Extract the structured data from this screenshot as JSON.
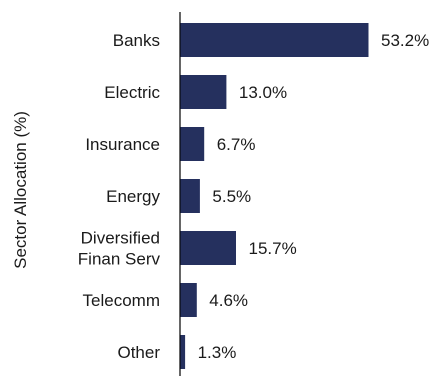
{
  "chart_data": {
    "type": "bar",
    "orientation": "horizontal",
    "ylabel": "Sector Allocation (%)",
    "xlabel": "",
    "title": "",
    "categories": [
      [
        "Banks"
      ],
      [
        "Electric"
      ],
      [
        "Insurance"
      ],
      [
        "Energy"
      ],
      [
        "Diversified",
        "Finan Serv"
      ],
      [
        "Telecomm"
      ],
      [
        "Other"
      ]
    ],
    "values": [
      53.2,
      13.0,
      6.7,
      5.5,
      15.7,
      4.6,
      1.3
    ],
    "value_labels": [
      "53.2%",
      "13.0%",
      "6.7%",
      "5.5%",
      "15.7%",
      "4.6%",
      "1.3%"
    ],
    "xlim": [
      0,
      53.2
    ],
    "bar_color": "#25305e",
    "axis_color": "#000000",
    "grid": false,
    "legend": "none"
  }
}
